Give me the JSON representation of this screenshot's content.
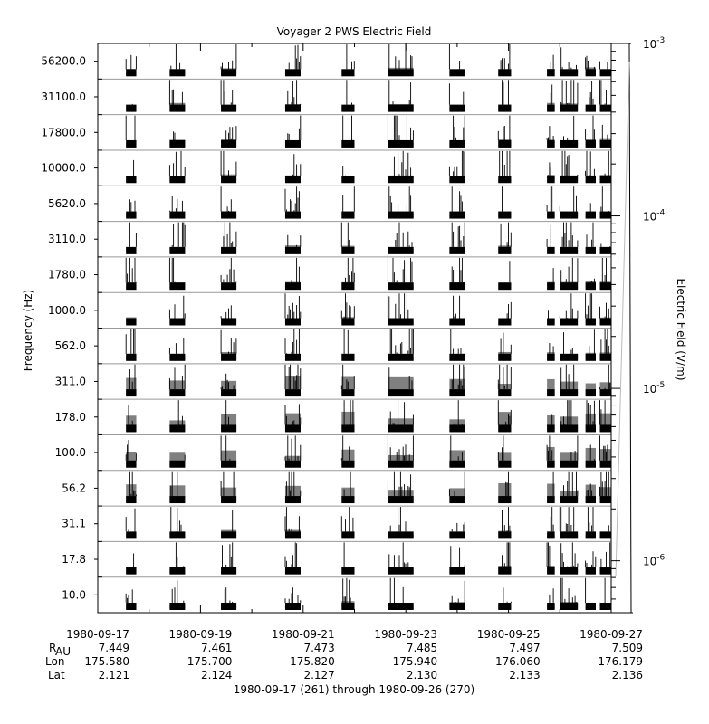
{
  "chart_data": {
    "type": "heatmap",
    "title": "Voyager 2 PWS Electric Field",
    "ylabel": "Frequency (Hz)",
    "colorbar_label": "Electric Field (V/m)",
    "colorbar_scale": "log",
    "colorbar_range": [
      5e-07,
      0.001
    ],
    "colorbar_ticks": [
      {
        "base": "10",
        "exp": "-3",
        "value": 0.001
      },
      {
        "base": "10",
        "exp": "-4",
        "value": 0.0001
      },
      {
        "base": "10",
        "exp": "-5",
        "value": 1e-05
      },
      {
        "base": "10",
        "exp": "-6",
        "value": 1e-06
      }
    ],
    "channels": [
      "56200.0",
      "31100.0",
      "17800.0",
      "10000.0",
      "5620.0",
      "3110.0",
      "1780.0",
      "1000.0",
      "562.0",
      "311.0",
      "178.0",
      "100.0",
      "56.2",
      "31.1",
      "17.8",
      "10.0"
    ],
    "x_range": [
      "1980-09-17",
      "1980-09-27"
    ],
    "x_ticks": [
      "1980-09-17",
      "1980-09-19",
      "1980-09-21",
      "1980-09-23",
      "1980-09-25",
      "1980-09-27"
    ],
    "data_intervals_days_since_start": [
      [
        0.55,
        0.75
      ],
      [
        1.4,
        1.7
      ],
      [
        2.4,
        2.7
      ],
      [
        3.65,
        3.95
      ],
      [
        4.75,
        5.0
      ],
      [
        5.65,
        6.15
      ],
      [
        6.85,
        7.15
      ],
      [
        7.8,
        8.05
      ],
      [
        8.75,
        8.9
      ],
      [
        9.0,
        9.35
      ],
      [
        9.5,
        9.7
      ],
      [
        9.78,
        10.0
      ]
    ],
    "ephemeris": {
      "labels": {
        "r_main": "R",
        "r_sub": "AU",
        "lon": "Lon",
        "lat": "Lat"
      },
      "rows": {
        "r": [
          "7.449",
          "7.461",
          "7.473",
          "7.485",
          "7.497",
          "7.509"
        ],
        "lon": [
          "175.580",
          "175.700",
          "175.820",
          "175.940",
          "176.060",
          "176.179"
        ],
        "lat": [
          "2.121",
          "2.124",
          "2.127",
          "2.130",
          "2.133",
          "2.136"
        ]
      }
    },
    "date_range_caption": "1980-09-17 (261) through 1980-09-26 (270)"
  }
}
